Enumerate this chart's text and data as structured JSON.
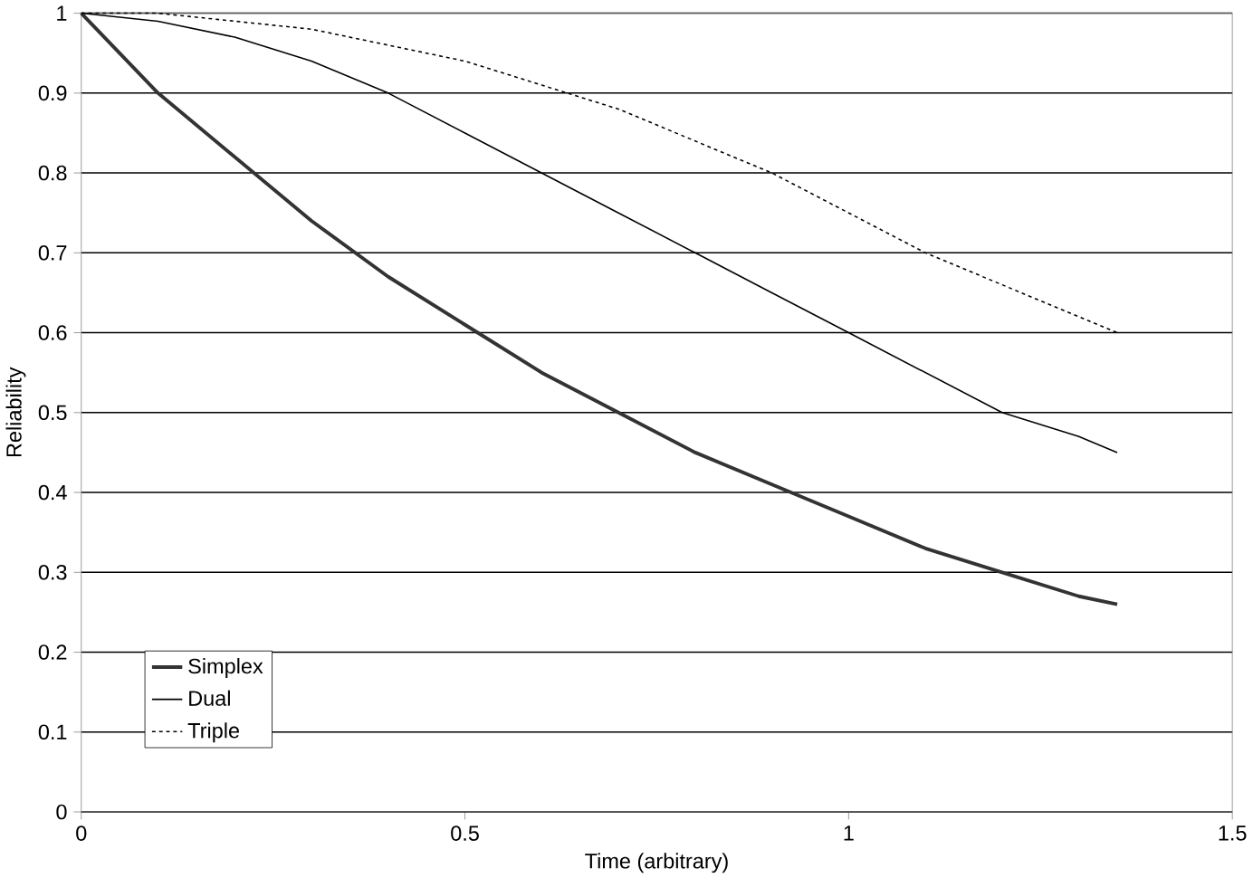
{
  "chart_data": {
    "type": "line",
    "xlabel": "Time (arbitrary)",
    "ylabel": "Reliability",
    "x": [
      0,
      0.1,
      0.2,
      0.3,
      0.4,
      0.5,
      0.6,
      0.7,
      0.8,
      0.9,
      1.0,
      1.1,
      1.2,
      1.3,
      1.35
    ],
    "series": [
      {
        "name": "Simplex",
        "color": "#333333",
        "line_style": "solid",
        "values": [
          1,
          0.9,
          0.82,
          0.74,
          0.67,
          0.61,
          0.55,
          0.5,
          0.45,
          0.41,
          0.37,
          0.33,
          0.3,
          0.27,
          0.26
        ]
      },
      {
        "name": "Dual",
        "color": "#000000",
        "line_style": "solid",
        "values": [
          1,
          0.99,
          0.97,
          0.94,
          0.9,
          0.85,
          0.8,
          0.75,
          0.7,
          0.65,
          0.6,
          0.55,
          0.5,
          0.47,
          0.45
        ]
      },
      {
        "name": "Triple",
        "color": "#000000",
        "line_style": "dotted",
        "values": [
          1,
          1.0,
          0.99,
          0.98,
          0.96,
          0.94,
          0.91,
          0.88,
          0.84,
          0.8,
          0.75,
          0.7,
          0.66,
          0.62,
          0.6
        ]
      }
    ],
    "xlim": [
      0,
      1.5
    ],
    "xticks": [
      0,
      0.5,
      1,
      1.5
    ],
    "ylim": [
      0,
      1
    ],
    "yticks": [
      0,
      0.1,
      0.2,
      0.3,
      0.4,
      0.5,
      0.6,
      0.7,
      0.8,
      0.9,
      1
    ],
    "grid": "y",
    "legend": "bottom left",
    "marker": "none"
  }
}
